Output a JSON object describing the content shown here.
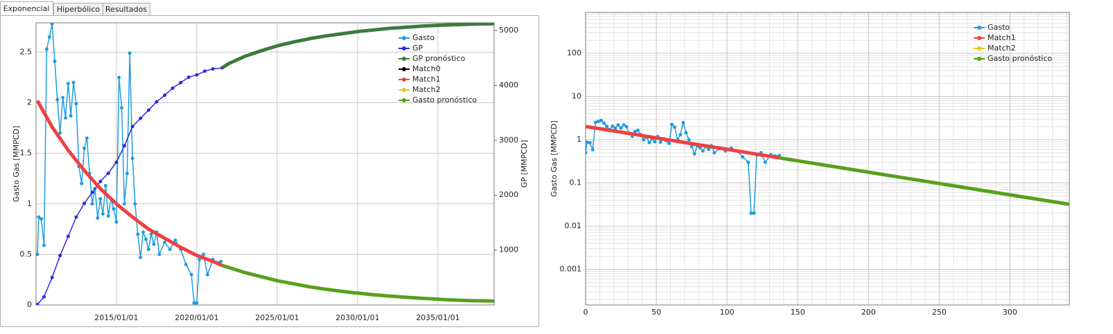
{
  "tabs": [
    "Exponencial",
    "Hiperbólico",
    "Resultados"
  ],
  "chart_data": [
    {
      "type": "line",
      "y_label": "Gasto Gas [MMPCD]",
      "y2_label": "GP [MMPCD]",
      "xlim": [
        "2010/01/01",
        "2038/07/01"
      ],
      "xticks": [
        "2015/01/01",
        "2020/01/01",
        "2025/01/01",
        "2030/01/01",
        "2035/01/01"
      ],
      "ylim": [
        0,
        2.79
      ],
      "yticks": [
        0,
        0.5,
        1,
        1.5,
        2,
        2.5
      ],
      "y2lim": [
        0,
        5140
      ],
      "y2ticks": [
        1000,
        2000,
        3000,
        4000,
        5000
      ],
      "grid": true,
      "legend": "upper right",
      "series": [
        {
          "name": "Gasto",
          "color": "#1e9de0",
          "markers": true,
          "x": [
            "2010/02/01",
            "2010/03/01",
            "2010/05/01",
            "2010/07/01",
            "2010/09/01",
            "2010/11/01",
            "2011/01/01",
            "2011/03/01",
            "2011/05/01",
            "2011/07/01",
            "2011/09/01",
            "2011/11/01",
            "2012/01/01",
            "2012/03/01",
            "2012/05/01",
            "2012/07/01",
            "2012/09/01",
            "2012/11/01",
            "2013/01/01",
            "2013/03/01",
            "2013/05/01",
            "2013/07/01",
            "2013/09/01",
            "2013/11/01",
            "2014/01/01",
            "2014/03/01",
            "2014/05/01",
            "2014/07/01",
            "2014/09/01",
            "2014/11/01",
            "2015/01/01",
            "2015/03/01",
            "2015/05/01",
            "2015/07/01",
            "2015/09/01",
            "2015/11/01",
            "2016/01/01",
            "2016/03/01",
            "2016/05/01",
            "2016/07/01",
            "2016/09/01",
            "2016/11/01",
            "2017/01/01",
            "2017/03/01",
            "2017/05/01",
            "2017/07/01",
            "2017/09/01",
            "2018/01/01",
            "2018/05/01",
            "2018/09/01",
            "2019/01/01",
            "2019/05/01",
            "2019/09/01",
            "2019/11/01",
            "2020/01/01",
            "2020/03/01",
            "2020/06/01",
            "2020/09/01",
            "2021/01/01",
            "2021/04/01",
            "2021/07/01"
          ],
          "values": [
            0.5,
            0.87,
            0.85,
            0.59,
            2.53,
            2.65,
            2.78,
            2.41,
            2.03,
            1.7,
            2.05,
            1.85,
            2.19,
            1.87,
            2.2,
            1.99,
            1.37,
            1.2,
            1.55,
            1.65,
            1.3,
            1.0,
            1.15,
            0.86,
            1.05,
            0.9,
            1.18,
            0.88,
            1.05,
            0.95,
            0.82,
            2.25,
            1.95,
            1.0,
            1.3,
            2.49,
            1.45,
            1.0,
            0.7,
            0.47,
            0.72,
            0.65,
            0.55,
            0.7,
            0.6,
            0.72,
            0.5,
            0.62,
            0.55,
            0.64,
            0.55,
            0.4,
            0.3,
            0.02,
            0.02,
            0.45,
            0.5,
            0.3,
            0.45,
            0.42,
            0.43
          ]
        },
        {
          "name": "GP",
          "color": "#2b2be0",
          "markers": true,
          "axis": "y2",
          "x": [
            "2010/02/01",
            "2010/07/01",
            "2011/01/01",
            "2011/07/01",
            "2012/01/01",
            "2012/07/01",
            "2013/01/01",
            "2013/07/01",
            "2014/01/01",
            "2014/07/01",
            "2015/01/01",
            "2015/07/01",
            "2016/01/01",
            "2016/07/01",
            "2017/01/01",
            "2017/07/01",
            "2018/01/01",
            "2018/07/01",
            "2019/01/01",
            "2019/07/01",
            "2020/01/01",
            "2020/07/01",
            "2021/01/01",
            "2021/08/01"
          ],
          "values": [
            10,
            150,
            500,
            900,
            1250,
            1600,
            1850,
            2050,
            2250,
            2400,
            2600,
            2900,
            3250,
            3400,
            3550,
            3700,
            3820,
            3950,
            4050,
            4150,
            4190,
            4260,
            4300,
            4320
          ]
        },
        {
          "name": "GP pronóstico",
          "color": "#3d7a3d",
          "markers": false,
          "axis": "y2",
          "x": [
            "2021/08/01",
            "2022/01/01",
            "2023/01/01",
            "2024/01/01",
            "2025/01/01",
            "2026/01/01",
            "2027/01/01",
            "2028/01/01",
            "2029/01/01",
            "2030/01/01",
            "2031/01/01",
            "2032/01/01",
            "2033/01/01",
            "2034/01/01",
            "2035/01/01",
            "2036/01/01",
            "2037/01/01",
            "2038/07/01"
          ],
          "values": [
            4320,
            4400,
            4530,
            4630,
            4720,
            4790,
            4850,
            4900,
            4940,
            4980,
            5010,
            5040,
            5060,
            5080,
            5095,
            5105,
            5115,
            5125
          ]
        },
        {
          "name": "Match0",
          "color": "#000000",
          "markers": false,
          "x": [],
          "values": []
        },
        {
          "name": "Match1",
          "color": "#f04040",
          "markers": false,
          "x": [
            "2010/02/01",
            "2011/01/01",
            "2012/01/01",
            "2013/01/01",
            "2014/01/01",
            "2015/01/01",
            "2016/01/01",
            "2017/01/01",
            "2018/01/01",
            "2019/01/01",
            "2020/01/01",
            "2021/01/01",
            "2021/08/01"
          ],
          "values": [
            2.02,
            1.76,
            1.53,
            1.33,
            1.15,
            1.0,
            0.87,
            0.75,
            0.66,
            0.57,
            0.49,
            0.43,
            0.39
          ]
        },
        {
          "name": "Match2",
          "color": "#f5c518",
          "markers": false,
          "x": [],
          "values": []
        },
        {
          "name": "Gasto pronóstico",
          "color": "#58a01c",
          "markers": false,
          "x": [
            "2021/08/01",
            "2022/01/01",
            "2023/01/01",
            "2024/01/01",
            "2025/01/01",
            "2026/01/01",
            "2027/01/01",
            "2028/01/01",
            "2029/01/01",
            "2030/01/01",
            "2031/01/01",
            "2032/01/01",
            "2033/01/01",
            "2034/01/01",
            "2035/01/01",
            "2036/01/01",
            "2037/01/01",
            "2038/07/01"
          ],
          "values": [
            0.39,
            0.37,
            0.32,
            0.28,
            0.24,
            0.21,
            0.18,
            0.156,
            0.135,
            0.117,
            0.101,
            0.088,
            0.076,
            0.066,
            0.057,
            0.049,
            0.043,
            0.039
          ]
        }
      ]
    },
    {
      "type": "line",
      "y_label": "Gasto Gas [MMPCD]",
      "y_scale": "log",
      "xlim": [
        0,
        342
      ],
      "xticks": [
        0,
        50,
        100,
        150,
        200,
        250,
        300
      ],
      "ylim": [
        0.00015,
        880
      ],
      "yticks": [
        0.001,
        0.01,
        0.1,
        1,
        10,
        100
      ],
      "grid": true,
      "minor_grid": true,
      "legend": "upper right",
      "series": [
        {
          "name": "Gasto",
          "color": "#1e9de0",
          "markers": true,
          "x": [
            0,
            1,
            3,
            5,
            7,
            9,
            11,
            13,
            15,
            17,
            19,
            21,
            23,
            25,
            27,
            29,
            31,
            33,
            35,
            37,
            39,
            41,
            43,
            45,
            47,
            49,
            51,
            53,
            55,
            57,
            59,
            61,
            63,
            65,
            67,
            69,
            71,
            73,
            75,
            77,
            79,
            81,
            83,
            85,
            87,
            89,
            91,
            95,
            99,
            103,
            107,
            111,
            115,
            117,
            119,
            121,
            124,
            127,
            131,
            134,
            137
          ],
          "values": [
            0.5,
            0.87,
            0.85,
            0.59,
            2.53,
            2.65,
            2.78,
            2.41,
            2.03,
            1.7,
            2.05,
            1.85,
            2.19,
            1.87,
            2.2,
            1.99,
            1.37,
            1.2,
            1.55,
            1.65,
            1.3,
            1.0,
            1.15,
            0.86,
            1.05,
            0.9,
            1.18,
            0.88,
            1.05,
            0.95,
            0.82,
            2.25,
            1.95,
            1.0,
            1.3,
            2.49,
            1.45,
            1.0,
            0.7,
            0.47,
            0.72,
            0.65,
            0.55,
            0.7,
            0.6,
            0.72,
            0.5,
            0.62,
            0.55,
            0.64,
            0.55,
            0.4,
            0.3,
            0.02,
            0.02,
            0.45,
            0.5,
            0.3,
            0.45,
            0.42,
            0.43
          ]
        },
        {
          "name": "Match1",
          "color": "#f04040",
          "markers": false,
          "x": [
            0,
            25,
            50,
            75,
            100,
            125,
            137
          ],
          "values": [
            2.02,
            1.5,
            1.1,
            0.81,
            0.6,
            0.44,
            0.38
          ]
        },
        {
          "name": "Match2",
          "color": "#f5c518",
          "markers": false,
          "x": [],
          "values": []
        },
        {
          "name": "Gasto pronóstico",
          "color": "#58a01c",
          "markers": false,
          "x": [
            137,
            200,
            250,
            300,
            342
          ],
          "values": [
            0.38,
            0.177,
            0.097,
            0.053,
            0.032
          ]
        }
      ]
    }
  ]
}
